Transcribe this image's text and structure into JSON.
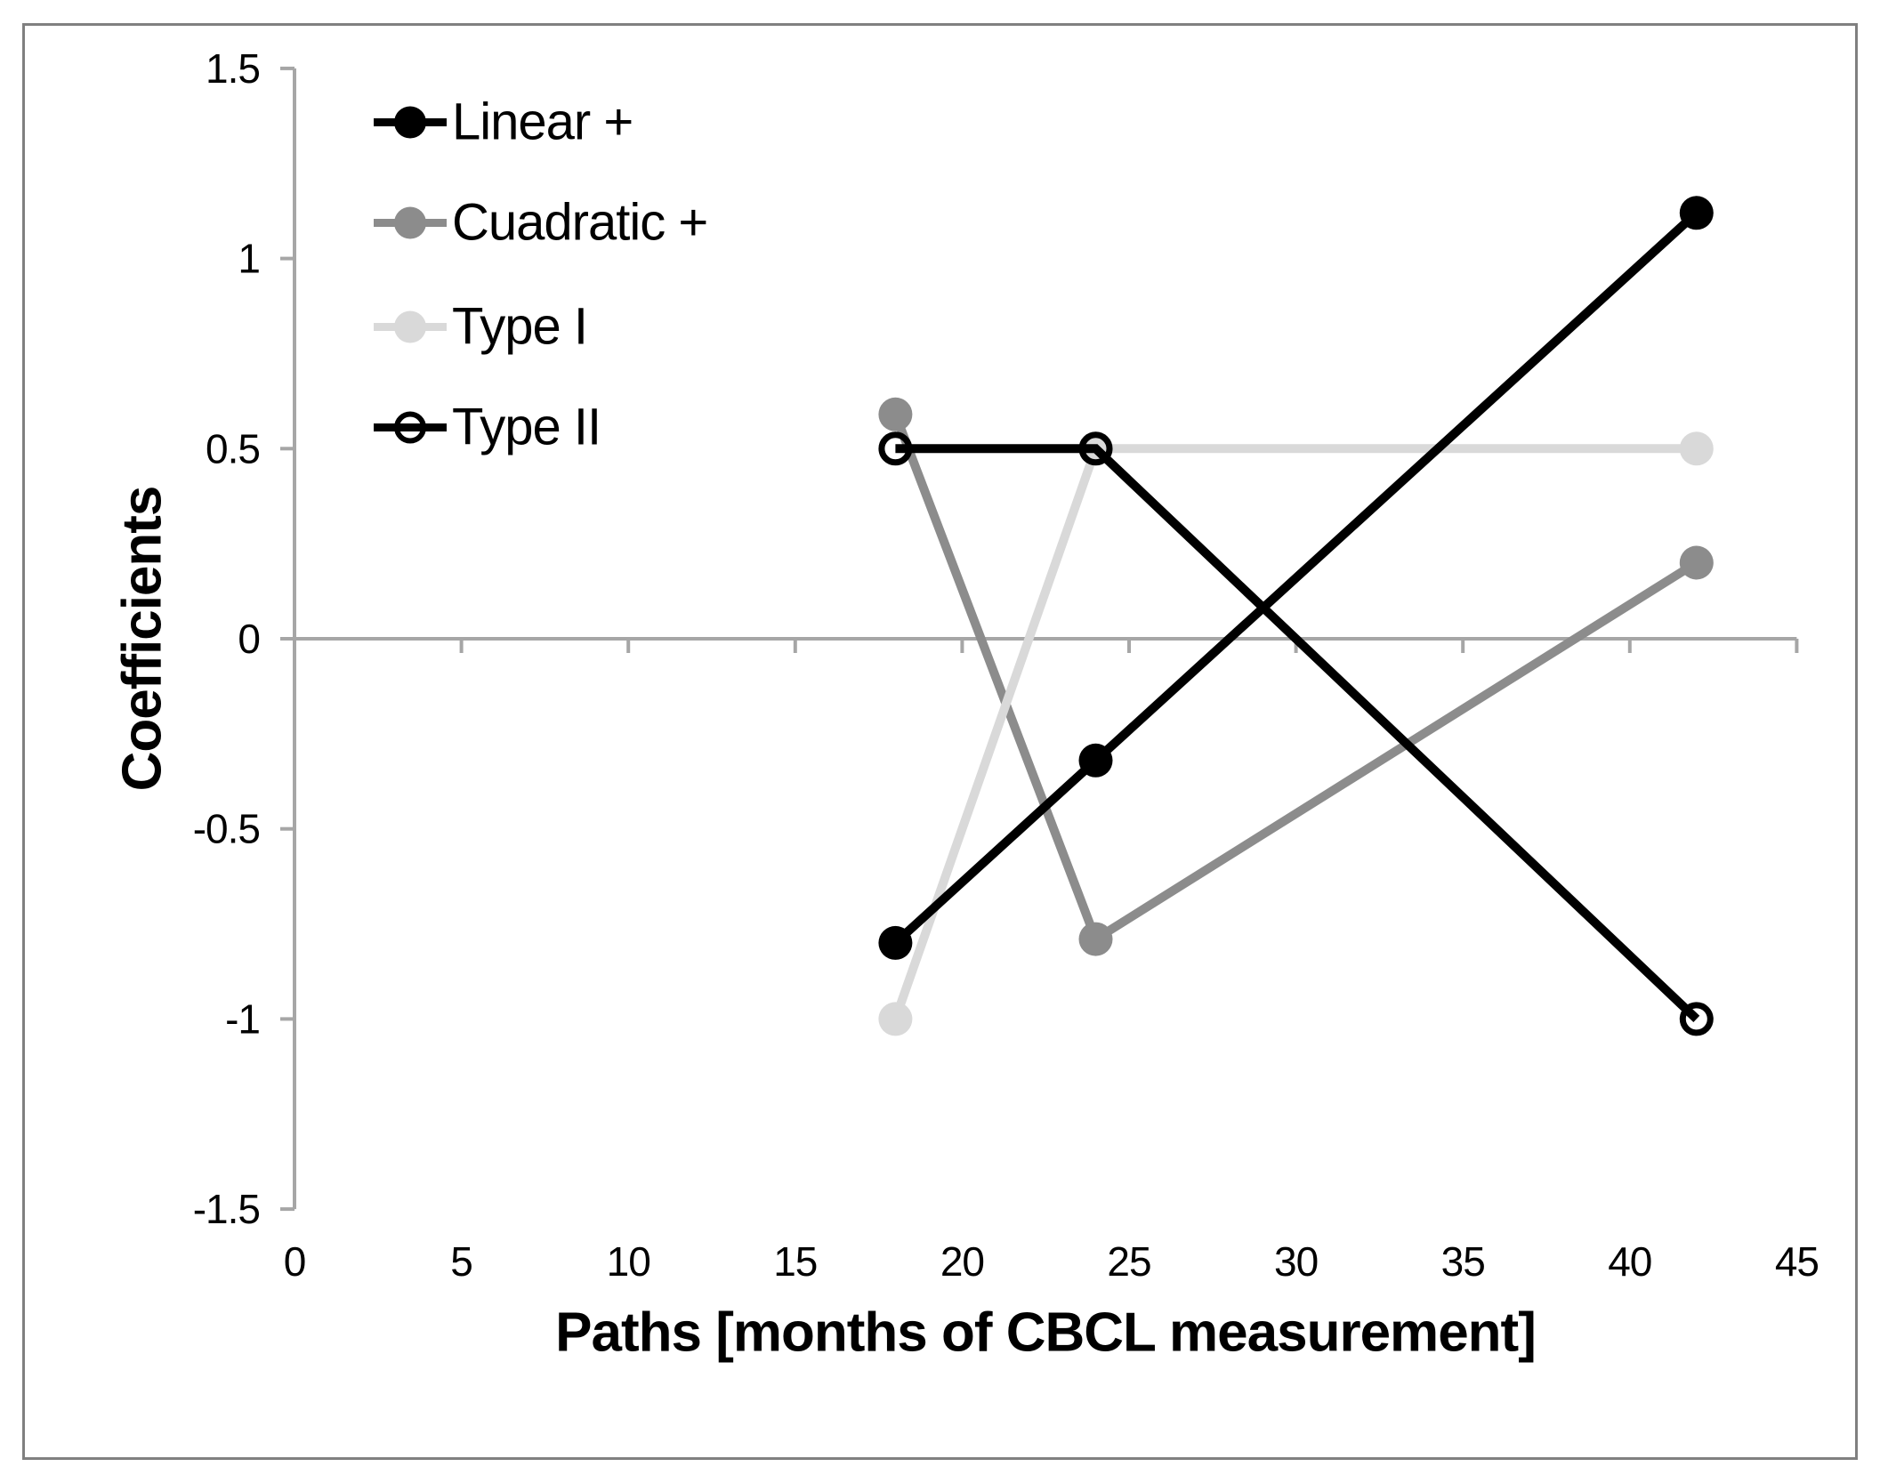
{
  "chart_data": {
    "type": "line",
    "title": "",
    "xlabel": "Paths [months of CBCL measurement]",
    "ylabel": "Coefficients",
    "x": [
      18,
      24,
      42
    ],
    "series": [
      {
        "name": "Linear +",
        "color": "#000000",
        "marker": "filled",
        "values": [
          -0.8,
          -0.32,
          1.12
        ]
      },
      {
        "name": "Cuadratic +",
        "color": "#8c8c8c",
        "marker": "filled",
        "values": [
          0.59,
          -0.79,
          0.2
        ]
      },
      {
        "name": "Type I",
        "color": "#d9d9d9",
        "marker": "filled",
        "values": [
          -1,
          0.5,
          0.5
        ]
      },
      {
        "name": "Type II",
        "color": "#000000",
        "marker": "open",
        "values": [
          0.5,
          0.5,
          -1
        ]
      }
    ],
    "x_ticks": [
      0,
      5,
      10,
      15,
      20,
      25,
      30,
      35,
      40,
      45
    ],
    "y_ticks": [
      1.5,
      1,
      0.5,
      0,
      -0.5,
      -1,
      -1.5
    ],
    "xlim": [
      0,
      45
    ],
    "ylim": [
      -1.5,
      1.5
    ],
    "grid": "zero-line-only",
    "legend_position": "inside-top-left",
    "colors": {
      "axis": "#a6a6a6",
      "frame_border": "#808080",
      "text": "#000000"
    }
  }
}
